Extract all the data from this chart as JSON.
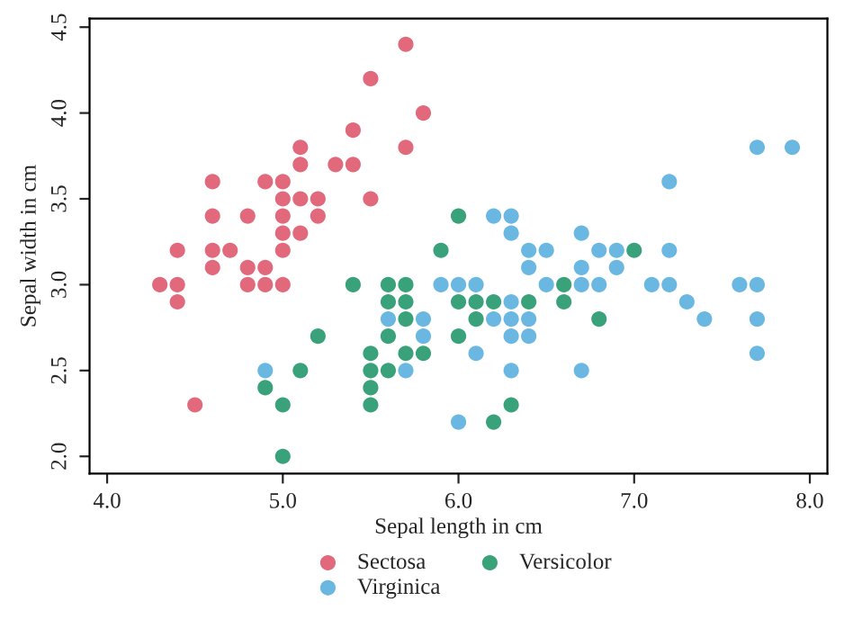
{
  "chart_data": {
    "type": "scatter",
    "xlabel": "Sepal length in cm",
    "ylabel": "Sepal width in cm",
    "xlim": [
      3.9,
      8.1
    ],
    "ylim": [
      1.9,
      4.55
    ],
    "xticks": [
      {
        "value": 4,
        "label": "4.0"
      },
      {
        "value": 5,
        "label": "5.0"
      },
      {
        "value": 6,
        "label": "6.0"
      },
      {
        "value": 7,
        "label": "7.0"
      },
      {
        "value": 8,
        "label": "8.0"
      }
    ],
    "yticks": [
      {
        "value": 2,
        "label": "2.0"
      },
      {
        "value": 2.5,
        "label": "2.5"
      },
      {
        "value": 3,
        "label": "3.0"
      },
      {
        "value": 3.5,
        "label": "3.5"
      },
      {
        "value": 4,
        "label": "4.0"
      },
      {
        "value": 4.5,
        "label": "4.5"
      }
    ],
    "grid": false,
    "legend": "bottom",
    "marker": "circle",
    "series": [
      {
        "name": "Sectosa",
        "color": "#e2697b",
        "x": [
          5.1,
          4.9,
          4.7,
          4.6,
          5.0,
          5.4,
          4.6,
          5.0,
          4.4,
          4.9,
          5.4,
          4.8,
          4.8,
          4.3,
          5.8,
          5.7,
          5.7,
          5.1,
          5.1,
          4.6,
          5.1,
          5.0,
          5.2,
          5.2,
          4.8,
          5.5,
          5.0,
          5.5,
          4.9,
          4.4,
          5.0,
          4.5,
          4.4,
          5.3,
          4.6,
          5.0
        ],
        "values": [
          3.5,
          3.0,
          3.2,
          3.1,
          3.6,
          3.9,
          3.4,
          3.4,
          2.9,
          3.1,
          3.7,
          3.4,
          3.0,
          3.0,
          4.0,
          4.4,
          3.8,
          3.8,
          3.7,
          3.6,
          3.3,
          3.0,
          3.5,
          3.4,
          3.1,
          4.2,
          3.2,
          3.5,
          3.6,
          3.0,
          3.5,
          2.3,
          3.2,
          3.7,
          3.2,
          3.3
        ]
      },
      {
        "name": "Versicolor",
        "color": "#3aa27a",
        "x": [
          7.0,
          5.5,
          5.7,
          4.9,
          6.6,
          5.2,
          5.0,
          6.1,
          5.6,
          5.6,
          6.2,
          5.6,
          5.9,
          6.1,
          6.3,
          6.4,
          6.6,
          6.8,
          6.0,
          5.7,
          5.5,
          6.0,
          5.4,
          6.0,
          5.5,
          5.5,
          5.8,
          5.0,
          5.6,
          5.7,
          5.7,
          6.2,
          5.1
        ],
        "values": [
          3.2,
          2.3,
          2.8,
          2.4,
          2.9,
          2.7,
          2.0,
          2.9,
          2.9,
          3.0,
          2.2,
          2.5,
          3.2,
          2.8,
          2.3,
          2.9,
          3.0,
          2.8,
          2.9,
          2.6,
          2.4,
          2.7,
          3.0,
          3.4,
          2.5,
          2.6,
          2.6,
          2.3,
          2.7,
          3.0,
          2.9,
          2.9,
          2.5
        ]
      },
      {
        "name": "Virginica",
        "color": "#6ab8e2",
        "x": [
          6.3,
          5.8,
          7.1,
          6.3,
          6.5,
          7.6,
          4.9,
          7.3,
          6.7,
          7.2,
          6.5,
          6.4,
          6.8,
          5.7,
          5.8,
          6.4,
          7.7,
          7.7,
          6.0,
          6.9,
          5.6,
          7.7,
          6.3,
          6.7,
          7.2,
          6.2,
          6.1,
          6.4,
          7.2,
          7.4,
          7.9,
          6.3,
          6.1,
          7.7,
          6.3,
          6.4,
          6.0,
          6.9,
          6.7,
          6.8,
          6.7,
          6.3,
          6.2,
          5.9
        ],
        "values": [
          3.3,
          2.7,
          3.0,
          2.9,
          3.0,
          3.0,
          2.5,
          2.9,
          2.5,
          3.6,
          3.2,
          2.7,
          3.0,
          2.5,
          2.8,
          3.2,
          3.8,
          2.6,
          2.2,
          3.2,
          2.8,
          2.8,
          2.7,
          3.3,
          3.2,
          2.8,
          3.0,
          2.8,
          3.0,
          2.8,
          3.8,
          2.8,
          2.6,
          3.0,
          3.4,
          3.1,
          3.0,
          3.1,
          3.1,
          3.2,
          3.0,
          2.5,
          3.4,
          3.0
        ]
      }
    ]
  }
}
